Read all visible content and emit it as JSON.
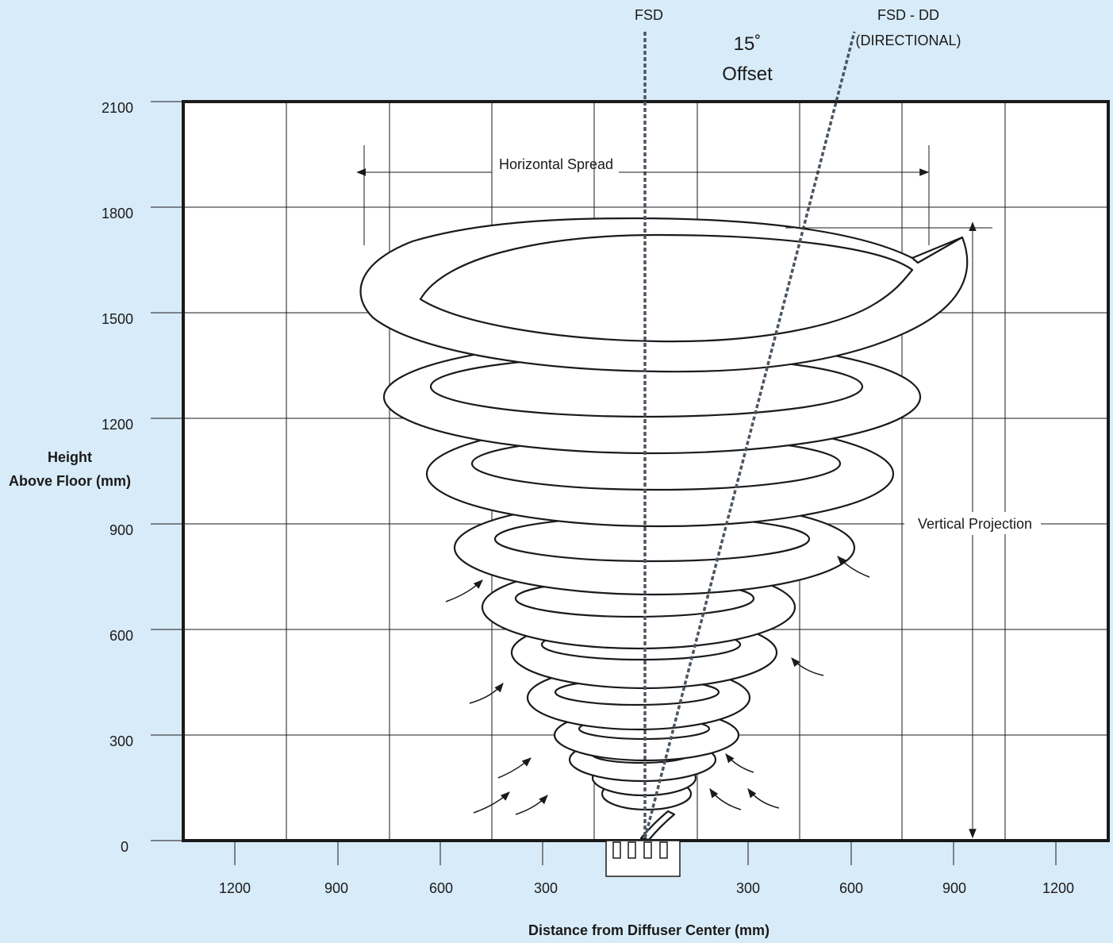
{
  "colors": {
    "background": "#d8ebf8",
    "plot": "#ffffff",
    "line": "#1a1a1a",
    "dashed": "#4a5560"
  },
  "labels": {
    "fsd": "FSD",
    "fsd_dd_1": "FSD - DD",
    "fsd_dd_2": "(DIRECTIONAL)",
    "offset_deg": "15˚",
    "offset_word": "Offset",
    "horizontal_spread": "Horizontal Spread",
    "vertical_projection": "Vertical Projection",
    "y_title_1": "Height",
    "y_title_2": "Above Floor (mm)",
    "x_title": "Distance from Diffuser Center (mm)"
  },
  "y_ticks": [
    "2100",
    "1800",
    "1500",
    "1200",
    "900",
    "600",
    "300",
    "0"
  ],
  "x_ticks": [
    "1200",
    "900",
    "600",
    "300",
    "300",
    "600",
    "900",
    "1200"
  ],
  "icons": [
    "spiral-airflow-icon",
    "diffuser-icon",
    "inflow-arrow-icon"
  ]
}
